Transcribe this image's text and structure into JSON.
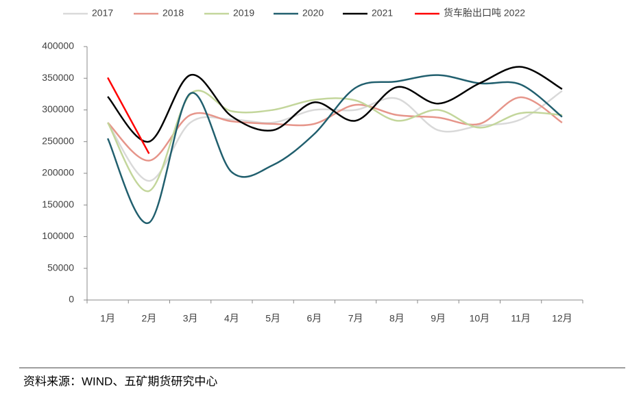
{
  "chart_data": {
    "type": "line",
    "categories": [
      "1月",
      "2月",
      "3月",
      "4月",
      "5月",
      "6月",
      "7月",
      "8月",
      "9月",
      "10月",
      "11月",
      "12月"
    ],
    "series": [
      {
        "name": "2017",
        "color": "#d9d9d9",
        "values": [
          280000,
          188000,
          280000,
          285000,
          280000,
          300000,
          300000,
          318000,
          268000,
          275000,
          285000,
          330000
        ]
      },
      {
        "name": "2018",
        "color": "#e6958a",
        "values": [
          280000,
          220000,
          292000,
          282000,
          278000,
          278000,
          308000,
          292000,
          288000,
          278000,
          320000,
          280000
        ]
      },
      {
        "name": "2019",
        "color": "#c3d69b",
        "values": [
          280000,
          172000,
          325000,
          298000,
          300000,
          316000,
          315000,
          283000,
          300000,
          272000,
          295000,
          292000
        ]
      },
      {
        "name": "2020",
        "color": "#215f6e",
        "values": [
          255000,
          122000,
          326000,
          202000,
          213000,
          262000,
          335000,
          345000,
          355000,
          342000,
          340000,
          289000
        ]
      },
      {
        "name": "2021",
        "color": "#000000",
        "values": [
          321000,
          250000,
          355000,
          290000,
          268000,
          312000,
          283000,
          336000,
          310000,
          342000,
          368000,
          333000
        ]
      },
      {
        "name": "货车胎出口吨 2022",
        "color": "#ff0000",
        "values": [
          351000,
          231000,
          null,
          null,
          null,
          null,
          null,
          null,
          null,
          null,
          null,
          null
        ]
      }
    ],
    "ylim": [
      0,
      400000
    ],
    "yticks": [
      0,
      50000,
      100000,
      150000,
      200000,
      250000,
      300000,
      350000,
      400000
    ],
    "source": "资料来源：WIND、五矿期货研究中心"
  }
}
